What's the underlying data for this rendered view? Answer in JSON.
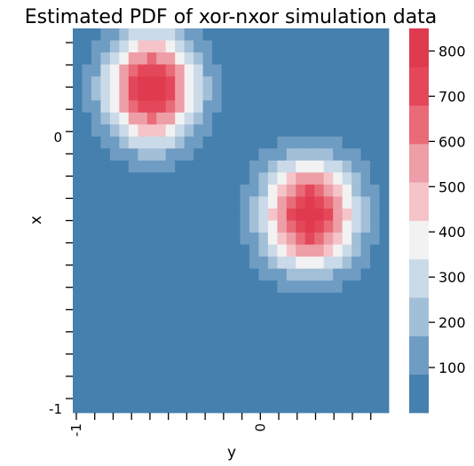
{
  "chart_data": {
    "type": "heatmap",
    "title": "Estimated PDF of xor-nxor simulation data",
    "xlabel": "y",
    "ylabel": "x",
    "x_tick_labels": [
      "-1",
      "0"
    ],
    "y_tick_labels": [
      "0",
      "-1"
    ],
    "rows": 32,
    "cols": 34,
    "x_range": [
      -1,
      0.7
    ],
    "y_range": [
      0.6,
      -1
    ],
    "colorbar": {
      "ticks": [
        "100",
        "200",
        "300",
        "400",
        "500",
        "600",
        "700",
        "800"
      ],
      "range": [
        0,
        850
      ],
      "bins": 10,
      "colors": [
        "#4580ae",
        "#6f9cc2",
        "#a2bfd8",
        "#cbdae8",
        "#f2f2f2",
        "#f5c4c9",
        "#ee9ea6",
        "#e86b77",
        "#e4475a",
        "#e03a4e"
      ]
    },
    "peaks": [
      {
        "row": 5,
        "col": 8.5,
        "value": 830
      },
      {
        "row": 15.5,
        "col": 25.5,
        "value": 830
      }
    ]
  }
}
